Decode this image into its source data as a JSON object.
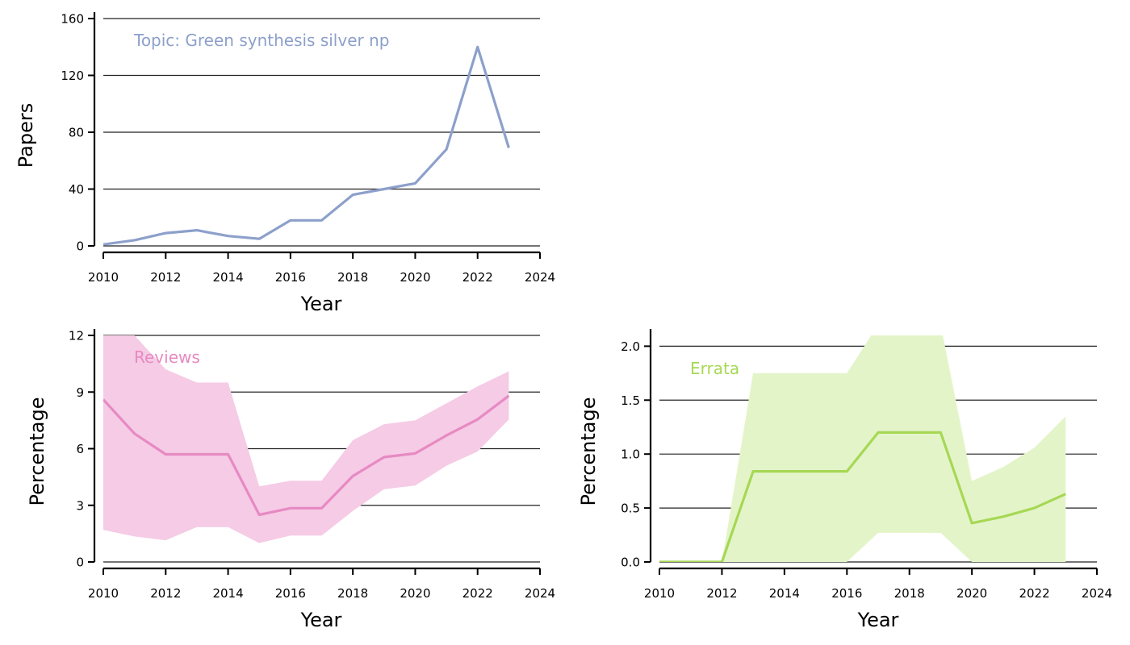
{
  "chart_data": [
    {
      "id": "papers",
      "type": "line",
      "annotation": "Topic: Green synthesis silver np",
      "xlabel": "Year",
      "ylabel": "Papers",
      "color": "#8da0cb",
      "xlim": [
        2010,
        2024
      ],
      "ylim": [
        0,
        160
      ],
      "xticks": [
        2010,
        2012,
        2014,
        2016,
        2018,
        2020,
        2022,
        2024
      ],
      "yticks": [
        0,
        40,
        80,
        120,
        160
      ],
      "ytick_labels": [
        "0",
        "40",
        "80",
        "120",
        "160"
      ],
      "grid": "horizontal",
      "x": [
        2010,
        2011,
        2012,
        2013,
        2014,
        2015,
        2016,
        2017,
        2018,
        2019,
        2020,
        2021,
        2022,
        2023
      ],
      "values": [
        1,
        4,
        9,
        11,
        7,
        5,
        18,
        18,
        36,
        40,
        44,
        68,
        140,
        69
      ]
    },
    {
      "id": "reviews",
      "type": "area",
      "annotation": "Reviews",
      "xlabel": "Year",
      "ylabel": "Percentage",
      "color": "#e78ac3",
      "band_color": "#f5cbe5",
      "xlim": [
        2010,
        2024
      ],
      "ylim": [
        0,
        12
      ],
      "xticks": [
        2010,
        2012,
        2014,
        2016,
        2018,
        2020,
        2022,
        2024
      ],
      "yticks": [
        0,
        3,
        6,
        9,
        12
      ],
      "ytick_labels": [
        "0",
        "3",
        "6",
        "9",
        "12"
      ],
      "grid": "horizontal",
      "x": [
        2010,
        2011,
        2012,
        2013,
        2014,
        2015,
        2016,
        2017,
        2018,
        2019,
        2020,
        2021,
        2022,
        2023
      ],
      "values": [
        8.6,
        6.8,
        5.7,
        5.7,
        5.7,
        2.5,
        2.85,
        2.85,
        4.55,
        5.55,
        5.75,
        6.7,
        7.55,
        8.8
      ],
      "lower": [
        1.7,
        1.35,
        1.15,
        1.85,
        1.85,
        1.0,
        1.4,
        1.4,
        2.7,
        3.85,
        4.05,
        5.1,
        5.85,
        7.55
      ],
      "upper": [
        13.5,
        12.0,
        10.2,
        9.5,
        9.5,
        4.0,
        4.3,
        4.3,
        6.45,
        7.3,
        7.5,
        8.4,
        9.3,
        10.1
      ]
    },
    {
      "id": "errata",
      "type": "area",
      "annotation": "Errata",
      "xlabel": "Year",
      "ylabel": "Percentage",
      "color": "#a6d854",
      "band_color": "#e4f4c9",
      "xlim": [
        2010,
        2024
      ],
      "ylim": [
        0,
        2.1
      ],
      "xticks": [
        2010,
        2012,
        2014,
        2016,
        2018,
        2020,
        2022,
        2024
      ],
      "yticks": [
        0,
        0.5,
        1.0,
        1.5,
        2.0
      ],
      "ytick_labels": [
        "0.0",
        "0.5",
        "1.0",
        "1.5",
        "2.0"
      ],
      "grid": "horizontal",
      "x": [
        2010,
        2011,
        2012,
        2013,
        2014,
        2015,
        2016,
        2017,
        2018,
        2019,
        2020,
        2021,
        2022,
        2023
      ],
      "values": [
        0,
        0,
        0,
        0.84,
        0.84,
        0.84,
        0.84,
        1.2,
        1.2,
        1.2,
        0.36,
        0.42,
        0.5,
        0.63
      ],
      "lower": [
        0,
        0,
        0,
        0,
        0,
        0,
        0,
        0.27,
        0.27,
        0.27,
        0,
        0,
        0,
        0
      ],
      "upper": [
        0,
        0,
        0,
        1.75,
        1.75,
        1.75,
        1.75,
        2.2,
        2.2,
        2.2,
        0.75,
        0.88,
        1.06,
        1.35
      ]
    }
  ]
}
